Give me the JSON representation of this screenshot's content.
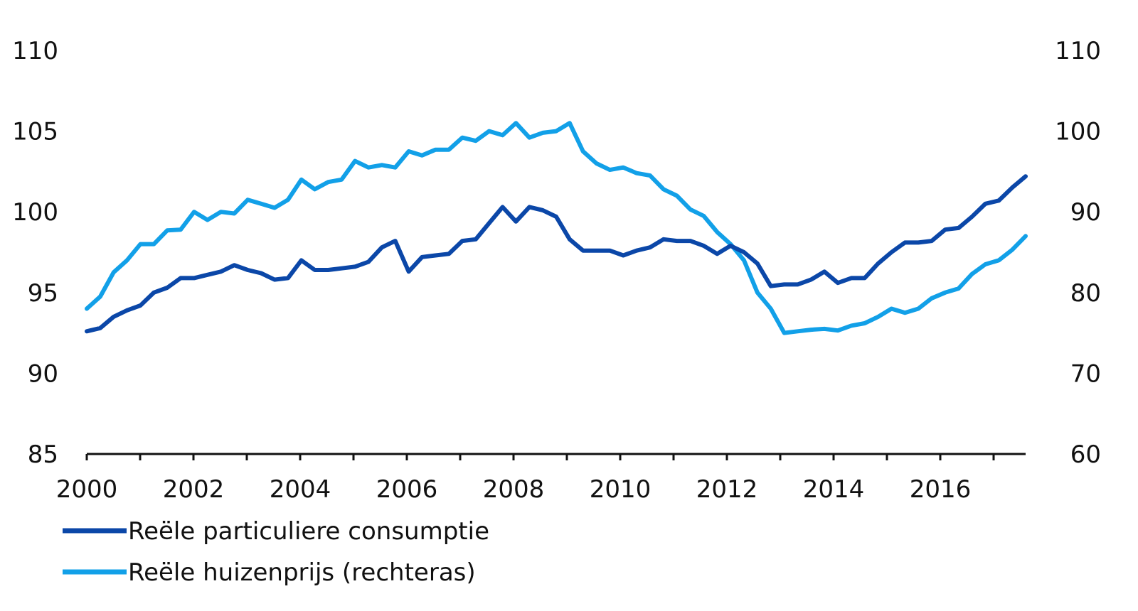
{
  "chart_data": {
    "type": "line",
    "x_ticks": [
      "2000",
      "2002",
      "2004",
      "2006",
      "2008",
      "2010",
      "2012",
      "2014",
      "2016"
    ],
    "y_left": {
      "range": [
        85,
        110
      ],
      "ticks": [
        "85",
        "90",
        "95",
        "100",
        "105",
        "110"
      ]
    },
    "y_right": {
      "range": [
        60,
        110
      ],
      "ticks": [
        "60",
        "70",
        "80",
        "90",
        "100",
        "110"
      ]
    },
    "grid": false,
    "legend_position": "bottom-left",
    "series": [
      {
        "name": "Reële particuliere consumptie",
        "axis": "left",
        "color": "#0B47A8",
        "values": [
          92.6,
          92.8,
          93.5,
          93.9,
          94.2,
          95.0,
          95.3,
          95.9,
          95.9,
          96.1,
          96.3,
          96.7,
          96.4,
          96.2,
          95.8,
          95.9,
          97.0,
          96.4,
          96.4,
          96.5,
          96.6,
          96.9,
          97.8,
          98.2,
          96.3,
          97.2,
          97.3,
          97.4,
          98.2,
          98.3,
          99.3,
          100.3,
          99.4,
          100.3,
          100.1,
          99.7,
          98.3,
          97.6,
          97.6,
          97.6,
          97.3,
          97.6,
          97.8,
          98.3,
          98.2,
          98.2,
          97.9,
          97.4,
          97.9,
          97.5,
          96.8,
          95.4,
          95.5,
          95.5,
          95.8,
          96.3,
          95.6,
          95.9,
          95.9,
          96.8,
          97.5,
          98.1,
          98.1,
          98.2,
          98.9,
          99.0,
          99.7,
          100.5,
          100.7,
          101.5,
          102.2
        ]
      },
      {
        "name": "Reële huizenprijs (rechteras)",
        "axis": "right",
        "color": "#12A0E8",
        "values": [
          78.0,
          79.5,
          82.5,
          84.0,
          86.0,
          86.0,
          87.7,
          87.8,
          90.0,
          89.0,
          90.0,
          89.8,
          91.5,
          91.0,
          90.5,
          91.5,
          94.0,
          92.8,
          93.7,
          94.0,
          96.3,
          95.5,
          95.8,
          95.5,
          97.5,
          97.0,
          97.7,
          97.7,
          99.2,
          98.8,
          100.0,
          99.5,
          101.0,
          99.2,
          99.8,
          100.0,
          101.0,
          97.5,
          96.0,
          95.2,
          95.5,
          94.8,
          94.5,
          92.8,
          92.0,
          90.3,
          89.5,
          87.5,
          86.0,
          84.0,
          80.0,
          78.0,
          75.0,
          75.2,
          75.4,
          75.5,
          75.3,
          75.9,
          76.2,
          77.0,
          78.0,
          77.5,
          78.0,
          79.3,
          80.0,
          80.5,
          82.3,
          83.5,
          84.0,
          85.3,
          87.0
        ]
      }
    ]
  }
}
